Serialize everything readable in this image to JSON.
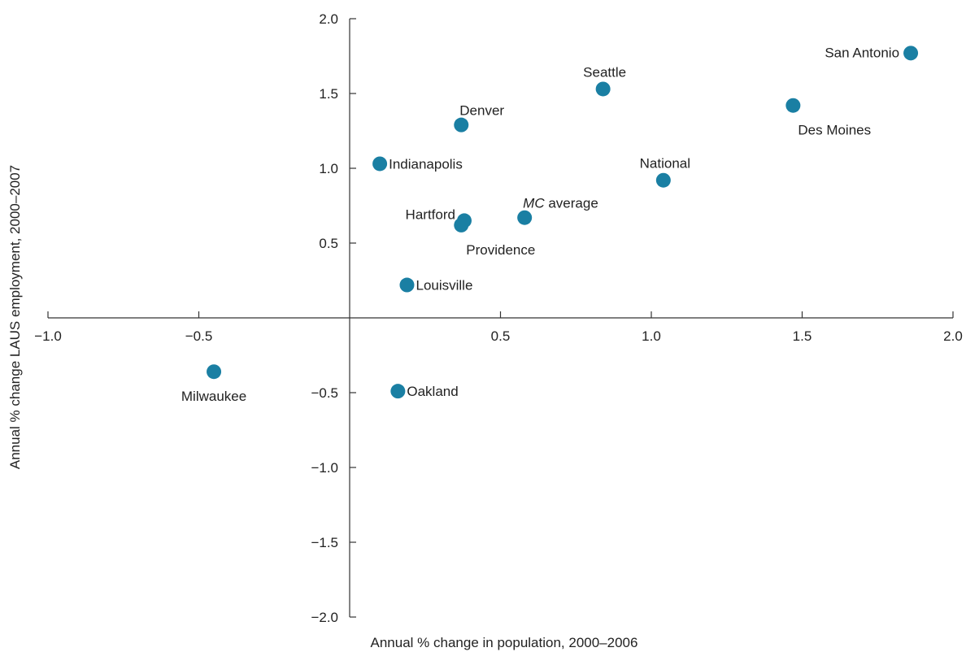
{
  "chart_data": {
    "type": "scatter",
    "title": "",
    "xlabel": "Annual % change in population, 2000–2006",
    "ylabel": "Annual % change LAUS employment, 2000–2007",
    "xlim": [
      -1.0,
      2.0
    ],
    "ylim": [
      -2.0,
      2.0
    ],
    "x_ticks": [
      -1.0,
      -0.5,
      0.5,
      1.0,
      1.5,
      2.0
    ],
    "x_tick_labels": [
      "−1.0",
      "−0.5",
      "0.5",
      "1.0",
      "1.5",
      "2.0"
    ],
    "y_ticks": [
      2.0,
      1.5,
      1.0,
      0.5,
      -0.5,
      -1.0,
      -1.5,
      -2.0
    ],
    "y_tick_labels": [
      "2.0",
      "1.5",
      "1.0",
      "0.5",
      "−0.5",
      "−1.0",
      "−1.5",
      "−2.0"
    ],
    "grid": false,
    "marker_color": "#1a7fa3",
    "points": [
      {
        "name": "San Antonio",
        "label_main": "San Antonio",
        "label_italic": "",
        "x": 1.86,
        "y": 1.77,
        "label_pos": "left"
      },
      {
        "name": "Seattle",
        "label_main": "Seattle",
        "label_italic": "",
        "x": 0.84,
        "y": 1.53,
        "label_pos": "above"
      },
      {
        "name": "Des Moines",
        "label_main": "Des Moines",
        "label_italic": "",
        "x": 1.47,
        "y": 1.42,
        "label_pos": "below-right"
      },
      {
        "name": "Denver",
        "label_main": "Denver",
        "label_italic": "",
        "x": 0.37,
        "y": 1.29,
        "label_pos": "above-right"
      },
      {
        "name": "Indianapolis",
        "label_main": "Indianapolis",
        "label_italic": "",
        "x": 0.1,
        "y": 1.03,
        "label_pos": "right"
      },
      {
        "name": "National",
        "label_main": "National",
        "label_italic": "",
        "x": 1.04,
        "y": 0.92,
        "label_pos": "above"
      },
      {
        "name": "MC average",
        "label_main": " average",
        "label_italic": "MC",
        "x": 0.58,
        "y": 0.67,
        "label_pos": "above-right"
      },
      {
        "name": "Hartford",
        "label_main": "Hartford",
        "label_italic": "",
        "x": 0.38,
        "y": 0.65,
        "label_pos": "above-left"
      },
      {
        "name": "Providence",
        "label_main": "Providence",
        "label_italic": "",
        "x": 0.37,
        "y": 0.62,
        "label_pos": "below-right"
      },
      {
        "name": "Louisville",
        "label_main": "Louisville",
        "label_italic": "",
        "x": 0.19,
        "y": 0.22,
        "label_pos": "right"
      },
      {
        "name": "Milwaukee",
        "label_main": "Milwaukee",
        "label_italic": "",
        "x": -0.45,
        "y": -0.36,
        "label_pos": "below"
      },
      {
        "name": "Oakland",
        "label_main": "Oakland",
        "label_italic": "",
        "x": 0.16,
        "y": -0.49,
        "label_pos": "right"
      }
    ]
  }
}
